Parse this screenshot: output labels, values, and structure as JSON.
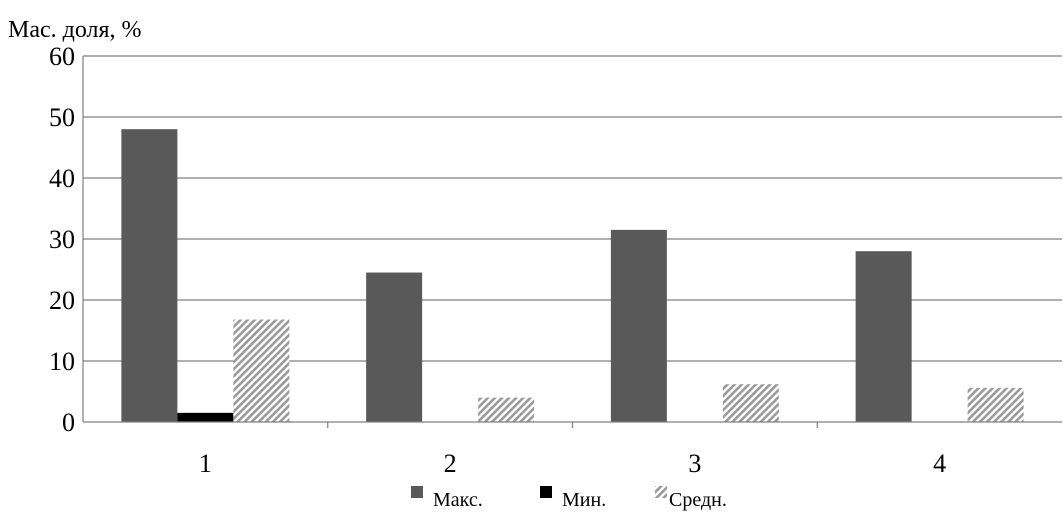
{
  "chart_data": {
    "type": "bar",
    "ylabel": "Мас. доля, %",
    "xlabel": "",
    "categories": [
      "1",
      "2",
      "3",
      "4"
    ],
    "ylim": [
      0,
      60
    ],
    "yticks": [
      "0",
      "10",
      "20",
      "30",
      "40",
      "50",
      "60"
    ],
    "grid": true,
    "legend_position": "bottom",
    "series": [
      {
        "name": "Макс.",
        "values": [
          48,
          24.5,
          31.5,
          28
        ],
        "color": "#595959",
        "pattern": "solid"
      },
      {
        "name": "Мин.",
        "values": [
          1.5,
          0,
          0,
          0
        ],
        "color": "#000000",
        "pattern": "solid"
      },
      {
        "name": "Средн.",
        "values": [
          16.8,
          4,
          6.2,
          5.6
        ],
        "color": "#9a9a9a",
        "pattern": "diagonal-hatch"
      }
    ]
  }
}
